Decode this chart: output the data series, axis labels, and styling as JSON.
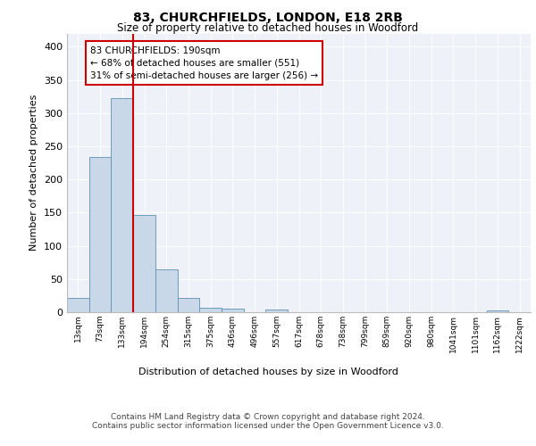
{
  "title1": "83, CHURCHFIELDS, LONDON, E18 2RB",
  "title2": "Size of property relative to detached houses in Woodford",
  "xlabel": "Distribution of detached houses by size in Woodford",
  "ylabel": "Number of detached properties",
  "bin_labels": [
    "13sqm",
    "73sqm",
    "133sqm",
    "194sqm",
    "254sqm",
    "315sqm",
    "375sqm",
    "436sqm",
    "496sqm",
    "557sqm",
    "617sqm",
    "678sqm",
    "738sqm",
    "799sqm",
    "859sqm",
    "920sqm",
    "980sqm",
    "1041sqm",
    "1101sqm",
    "1162sqm",
    "1222sqm"
  ],
  "bar_values": [
    22,
    234,
    323,
    146,
    65,
    22,
    7,
    5,
    0,
    4,
    0,
    0,
    0,
    0,
    0,
    0,
    0,
    0,
    0,
    3,
    0
  ],
  "bar_color": "#c8d8e8",
  "bar_edge_color": "#6090b0",
  "background_color": "#eef2f8",
  "grid_color": "#ffffff",
  "red_line_x": 3.0,
  "annotation_text": "83 CHURCHFIELDS: 190sqm\n← 68% of detached houses are smaller (551)\n31% of semi-detached houses are larger (256) →",
  "annotation_box_color": "#ffffff",
  "annotation_box_edge": "#cc0000",
  "ylim": [
    0,
    420
  ],
  "yticks": [
    0,
    50,
    100,
    150,
    200,
    250,
    300,
    350,
    400
  ],
  "footer": "Contains HM Land Registry data © Crown copyright and database right 2024.\nContains public sector information licensed under the Open Government Licence v3.0."
}
